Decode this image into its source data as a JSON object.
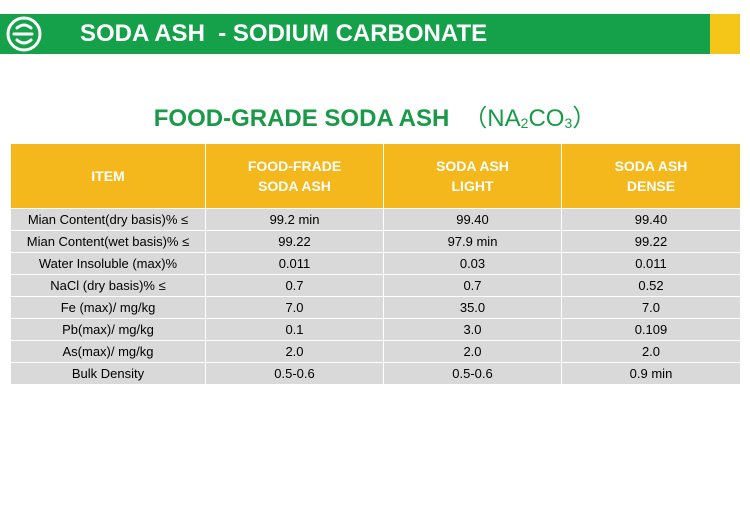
{
  "header": {
    "title": "SODA ASH  - SODIUM CARBONATE"
  },
  "heading": {
    "title": "FOOD-GRADE SODA ASH",
    "formula": [
      "（NA",
      "2",
      "CO",
      "3",
      "）"
    ]
  },
  "table": {
    "columns": [
      "ITEM",
      "FOOD-FRADE SODA ASH",
      "SODA ASH LIGHT",
      "SODA ASH DENSE"
    ],
    "rows": [
      [
        "Mian Content(dry basis)% ≤",
        "99.2 min",
        "99.40",
        "99.40"
      ],
      [
        "Mian Content(wet basis)% ≤",
        "99.22",
        "97.9 min",
        "99.22"
      ],
      [
        "Water Insoluble (max)%",
        "0.011",
        "0.03",
        "0.011"
      ],
      [
        "NaCl (dry basis)% ≤",
        "0.7",
        "0.7",
        "0.52"
      ],
      [
        "Fe (max)/ mg/kg",
        "7.0",
        "35.0",
        "7.0"
      ],
      [
        "Pb(max)/ mg/kg",
        "0.1",
        "3.0",
        "0.109"
      ],
      [
        "As(max)/ mg/kg",
        "2.0",
        "2.0",
        "2.0"
      ],
      [
        "Bulk Density",
        "0.5-0.6",
        "0.5-0.6",
        "0.9 min"
      ]
    ]
  }
}
